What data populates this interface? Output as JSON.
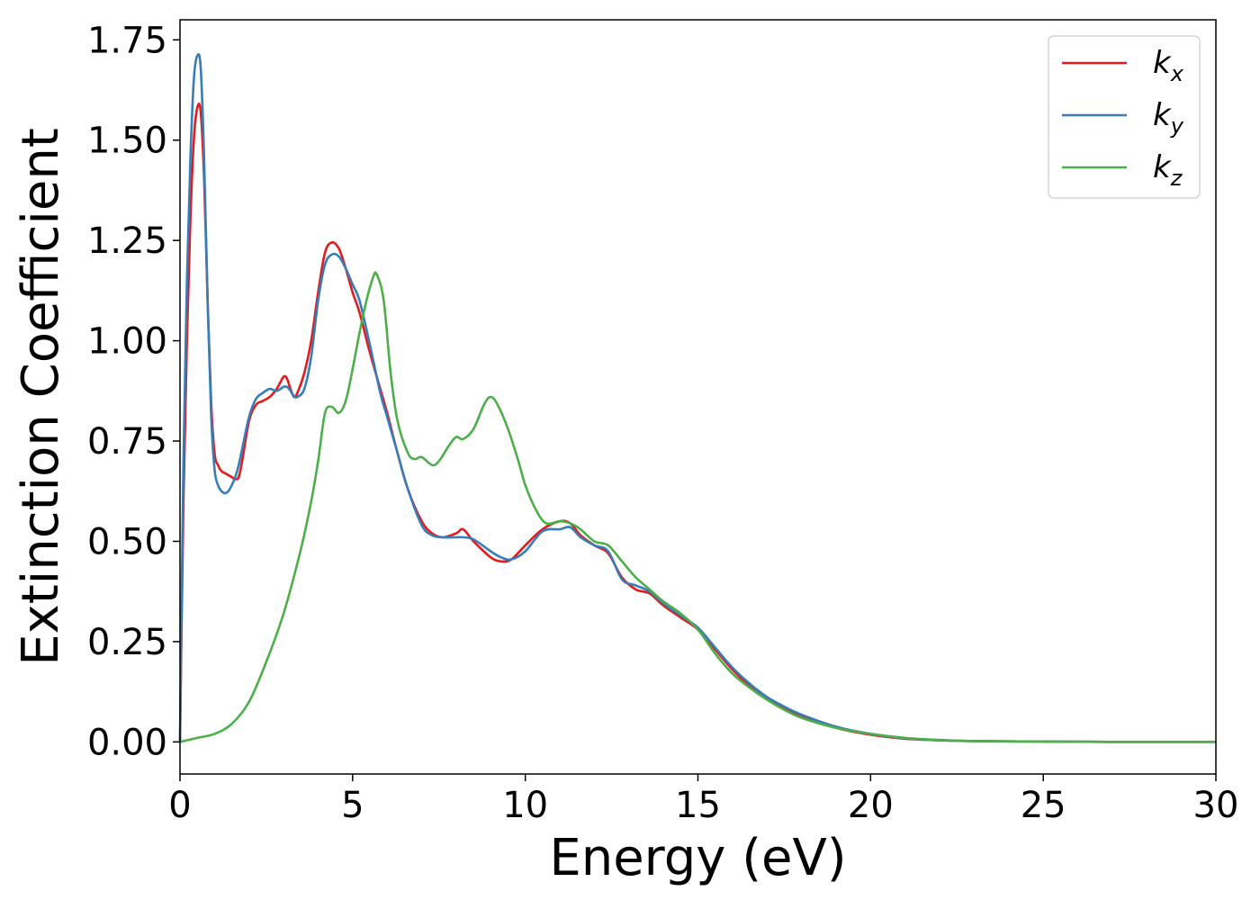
{
  "chart_data": {
    "type": "line",
    "xlabel": "Energy (eV)",
    "ylabel": "Extinction Coefficient",
    "xlim": [
      0,
      30
    ],
    "ylim": [
      -0.08,
      1.8
    ],
    "xticks": [
      0,
      5,
      10,
      15,
      20,
      25,
      30
    ],
    "xtick_labels": [
      "0",
      "5",
      "10",
      "15",
      "20",
      "25",
      "30"
    ],
    "yticks": [
      0.0,
      0.25,
      0.5,
      0.75,
      1.0,
      1.25,
      1.5,
      1.75
    ],
    "ytick_labels": [
      "0.00",
      "0.25",
      "0.50",
      "0.75",
      "1.00",
      "1.25",
      "1.50",
      "1.75"
    ],
    "grid": false,
    "legend_position": "top-right",
    "series": [
      {
        "name": "k",
        "subscript": "x",
        "color": "#e41a1c",
        "x": [
          0,
          0.1,
          0.2,
          0.3,
          0.4,
          0.5,
          0.6,
          0.7,
          0.8,
          0.9,
          1.0,
          1.1,
          1.2,
          1.3,
          1.4,
          1.5,
          1.6,
          1.7,
          1.8,
          2.0,
          2.2,
          2.4,
          2.6,
          2.8,
          3.0,
          3.1,
          3.2,
          3.3,
          3.4,
          3.6,
          3.8,
          4.0,
          4.2,
          4.4,
          4.6,
          4.8,
          5.0,
          5.2,
          5.5,
          5.8,
          6.0,
          6.3,
          6.6,
          7.0,
          7.3,
          7.6,
          8.0,
          8.2,
          8.5,
          9.0,
          9.3,
          9.6,
          10.0,
          10.5,
          11.0,
          11.3,
          11.6,
          12.0,
          12.4,
          12.8,
          13.2,
          13.6,
          14.0,
          14.5,
          15.0,
          15.5,
          16.0,
          16.5,
          17.0,
          17.5,
          18.0,
          19.0,
          20.0,
          21.0,
          22.0,
          23.0,
          25.0,
          27.0,
          30.0
        ],
        "values": [
          0.0,
          0.6,
          1.0,
          1.3,
          1.5,
          1.58,
          1.57,
          1.4,
          1.1,
          0.85,
          0.72,
          0.69,
          0.675,
          0.67,
          0.665,
          0.66,
          0.655,
          0.66,
          0.7,
          0.8,
          0.84,
          0.85,
          0.86,
          0.88,
          0.91,
          0.905,
          0.88,
          0.86,
          0.87,
          0.92,
          1.0,
          1.12,
          1.22,
          1.245,
          1.23,
          1.18,
          1.12,
          1.07,
          0.97,
          0.88,
          0.82,
          0.72,
          0.63,
          0.55,
          0.52,
          0.51,
          0.52,
          0.53,
          0.5,
          0.46,
          0.45,
          0.455,
          0.49,
          0.53,
          0.55,
          0.545,
          0.515,
          0.49,
          0.47,
          0.41,
          0.38,
          0.37,
          0.34,
          0.31,
          0.28,
          0.23,
          0.18,
          0.14,
          0.11,
          0.085,
          0.065,
          0.035,
          0.018,
          0.008,
          0.004,
          0.002,
          0.001,
          0.0,
          0.0
        ]
      },
      {
        "name": "k",
        "subscript": "y",
        "color": "#377eb8",
        "x": [
          0,
          0.1,
          0.2,
          0.3,
          0.4,
          0.5,
          0.6,
          0.7,
          0.8,
          0.9,
          1.0,
          1.1,
          1.2,
          1.3,
          1.4,
          1.5,
          1.6,
          1.7,
          1.8,
          2.0,
          2.2,
          2.4,
          2.6,
          2.8,
          3.0,
          3.1,
          3.2,
          3.3,
          3.4,
          3.6,
          3.8,
          4.0,
          4.2,
          4.4,
          4.6,
          4.8,
          5.0,
          5.2,
          5.5,
          5.8,
          6.0,
          6.3,
          6.6,
          7.0,
          7.3,
          7.6,
          8.0,
          8.2,
          8.5,
          9.0,
          9.3,
          9.6,
          10.0,
          10.5,
          11.0,
          11.3,
          11.6,
          12.0,
          12.4,
          12.8,
          13.2,
          13.6,
          14.0,
          14.5,
          15.0,
          15.5,
          16.0,
          16.5,
          17.0,
          17.5,
          18.0,
          19.0,
          20.0,
          21.0,
          22.0,
          23.0,
          25.0,
          27.0,
          30.0
        ],
        "values": [
          0.0,
          0.7,
          1.15,
          1.45,
          1.65,
          1.71,
          1.68,
          1.45,
          1.1,
          0.82,
          0.68,
          0.64,
          0.625,
          0.62,
          0.625,
          0.64,
          0.66,
          0.69,
          0.73,
          0.81,
          0.855,
          0.87,
          0.88,
          0.875,
          0.885,
          0.885,
          0.875,
          0.862,
          0.86,
          0.88,
          0.96,
          1.1,
          1.19,
          1.215,
          1.21,
          1.18,
          1.14,
          1.1,
          0.99,
          0.87,
          0.81,
          0.72,
          0.63,
          0.54,
          0.515,
          0.51,
          0.51,
          0.51,
          0.505,
          0.475,
          0.46,
          0.455,
          0.475,
          0.525,
          0.53,
          0.535,
          0.51,
          0.49,
          0.475,
          0.405,
          0.39,
          0.375,
          0.345,
          0.315,
          0.285,
          0.235,
          0.185,
          0.145,
          0.112,
          0.088,
          0.068,
          0.038,
          0.02,
          0.009,
          0.004,
          0.002,
          0.001,
          0.0,
          0.0
        ]
      },
      {
        "name": "k",
        "subscript": "z",
        "color": "#4daf4a",
        "x": [
          0,
          0.5,
          1.0,
          1.5,
          2.0,
          2.5,
          3.0,
          3.5,
          3.8,
          4.0,
          4.2,
          4.4,
          4.6,
          4.8,
          5.0,
          5.2,
          5.4,
          5.6,
          5.7,
          5.9,
          6.1,
          6.3,
          6.6,
          6.8,
          7.0,
          7.3,
          7.5,
          7.8,
          8.0,
          8.2,
          8.5,
          8.8,
          9.0,
          9.2,
          9.5,
          9.8,
          10.0,
          10.3,
          10.6,
          11.0,
          11.3,
          11.6,
          12.0,
          12.4,
          12.8,
          13.2,
          13.6,
          14.0,
          14.5,
          15.0,
          15.5,
          16.0,
          16.5,
          17.0,
          17.5,
          18.0,
          19.0,
          20.0,
          21.0,
          22.0,
          23.0,
          25.0,
          27.0,
          30.0
        ],
        "values": [
          0.0,
          0.01,
          0.02,
          0.045,
          0.1,
          0.2,
          0.32,
          0.48,
          0.6,
          0.7,
          0.82,
          0.835,
          0.82,
          0.85,
          0.93,
          1.02,
          1.1,
          1.16,
          1.165,
          1.1,
          0.92,
          0.8,
          0.72,
          0.705,
          0.71,
          0.69,
          0.7,
          0.74,
          0.76,
          0.755,
          0.78,
          0.84,
          0.86,
          0.84,
          0.78,
          0.7,
          0.64,
          0.58,
          0.545,
          0.55,
          0.545,
          0.53,
          0.5,
          0.49,
          0.45,
          0.41,
          0.38,
          0.35,
          0.32,
          0.28,
          0.22,
          0.17,
          0.135,
          0.105,
          0.08,
          0.06,
          0.035,
          0.02,
          0.01,
          0.005,
          0.002,
          0.001,
          0.0,
          0.0
        ]
      }
    ]
  }
}
